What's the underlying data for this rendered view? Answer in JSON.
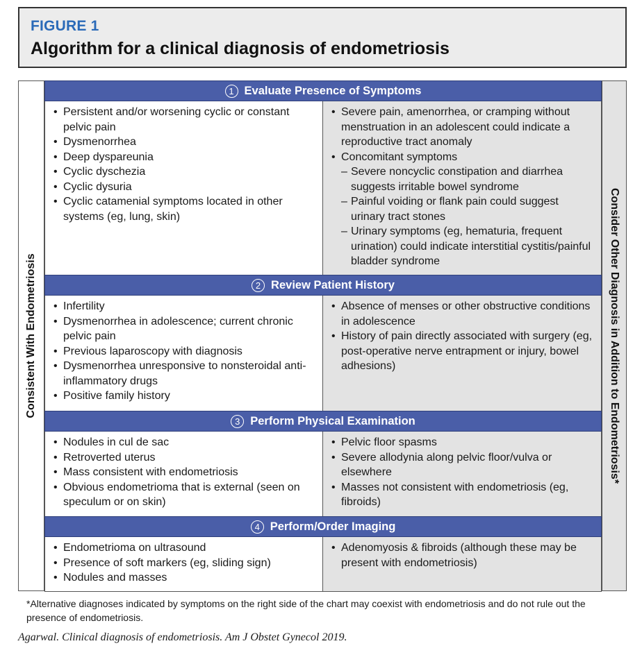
{
  "figure": {
    "number": "FIGURE 1",
    "title": "Algorithm for a clinical diagnosis of endometriosis",
    "accent_color": "#2a6ab8",
    "header_color": "#4a5ea8"
  },
  "side_labels": {
    "left": "Consistent With Endometriosis",
    "right": "Consider Other Diagnosis in Addition to Endometriosis*"
  },
  "steps": [
    {
      "number": "1",
      "title": "Evaluate Presence of Symptoms",
      "left": [
        "Persistent and/or worsening cyclic or constant pelvic pain",
        "Dysmenorrhea",
        "Deep dyspareunia",
        "Cyclic dyschezia",
        "Cyclic dysuria",
        "Cyclic catamenial symptoms located in other systems (eg, lung, skin)"
      ],
      "right": [
        "Severe pain, amenorrhea, or cramping without menstruation in an adolescent could indicate a reproductive tract anomaly",
        "Concomitant symptoms"
      ],
      "right_sub": [
        "Severe noncyclic constipation and diarrhea suggests irritable bowel syndrome",
        "Painful voiding or flank pain could suggest urinary tract stones",
        "Urinary symptoms (eg, hematuria, frequent urination) could indicate interstitial cystitis/painful bladder syndrome"
      ]
    },
    {
      "number": "2",
      "title": "Review Patient History",
      "left": [
        "Infertility",
        "Dysmenorrhea in adolescence; current chronic pelvic pain",
        "Previous laparoscopy with diagnosis",
        "Dysmenorrhea unresponsive to nonsteroidal anti-inflammatory drugs",
        "Positive family history"
      ],
      "right": [
        "Absence of menses or other obstructive conditions in adolescence",
        "History of pain directly associated with surgery (eg, post-operative nerve entrapment or injury, bowel adhesions)"
      ]
    },
    {
      "number": "3",
      "title": "Perform Physical Examination",
      "left": [
        "Nodules in cul de sac",
        "Retroverted uterus",
        "Mass consistent with endometriosis",
        "Obvious endometrioma that is external (seen on speculum or on skin)"
      ],
      "right": [
        "Pelvic floor spasms",
        "Severe allodynia along pelvic floor/vulva or elsewhere",
        "Masses not consistent with endometriosis (eg, fibroids)"
      ]
    },
    {
      "number": "4",
      "title": "Perform/Order Imaging",
      "left": [
        "Endometrioma on ultrasound",
        "Presence of soft markers (eg, sliding sign)",
        "Nodules and masses"
      ],
      "right": [
        "Adenomyosis & fibroids (although these may be present with endometriosis)"
      ]
    }
  ],
  "footnote": "*Alternative diagnoses indicated by symptoms on the right side of the chart may coexist with endometriosis and do not rule out the presence of endometriosis.",
  "citation": "Agarwal. Clinical diagnosis of endometriosis. Am J Obstet Gynecol 2019."
}
